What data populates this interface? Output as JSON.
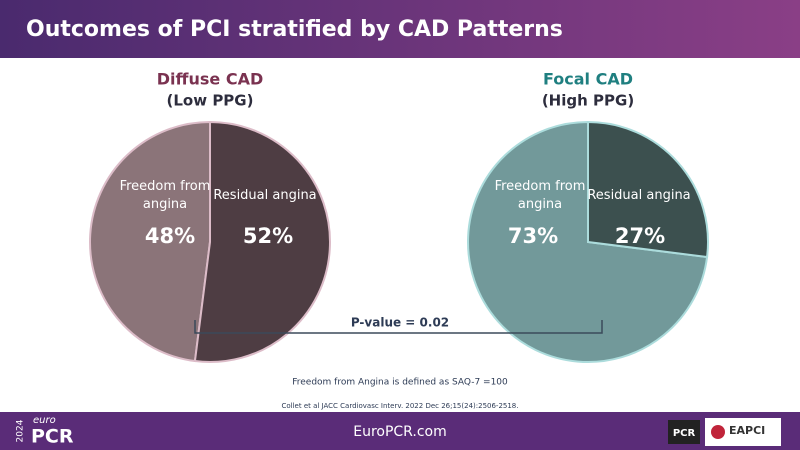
{
  "slide": {
    "title": "Outcomes of PCI stratified by CAD Patterns",
    "comparison": "P-value = 0.02",
    "notes": [
      "Freedom from Angina is defined as SAQ-7 =100",
      "Collet et al JACC Cardiovasc Interv. 2022 Dec 26;15(24):2506-2518."
    ],
    "footer": {
      "url": "EuroPCR.com",
      "year": "2024",
      "logo_small": "euro",
      "logo": "PCR",
      "partner_1": "PCR",
      "partner_2": "EAPCI"
    }
  },
  "chart_data": [
    {
      "type": "pie",
      "title": "Diffuse CAD",
      "subtitle": "(Low PPG)",
      "title_color": "#7a3250",
      "border_color": "#dcbcc8",
      "categories": [
        "Freedom from angina",
        "Residual angina"
      ],
      "values": [
        48,
        52
      ],
      "value_labels": [
        "48%",
        "52%"
      ],
      "colors": [
        "#8b7479",
        "#4e3d43"
      ]
    },
    {
      "type": "pie",
      "title": "Focal CAD",
      "subtitle": "(High PPG)",
      "title_color": "#1f7f80",
      "border_color": "#acdcdc",
      "categories": [
        "Freedom from angina",
        "Residual angina"
      ],
      "values": [
        73,
        27
      ],
      "value_labels": [
        "73%",
        "27%"
      ],
      "colors": [
        "#72999a",
        "#3c504f"
      ]
    }
  ]
}
